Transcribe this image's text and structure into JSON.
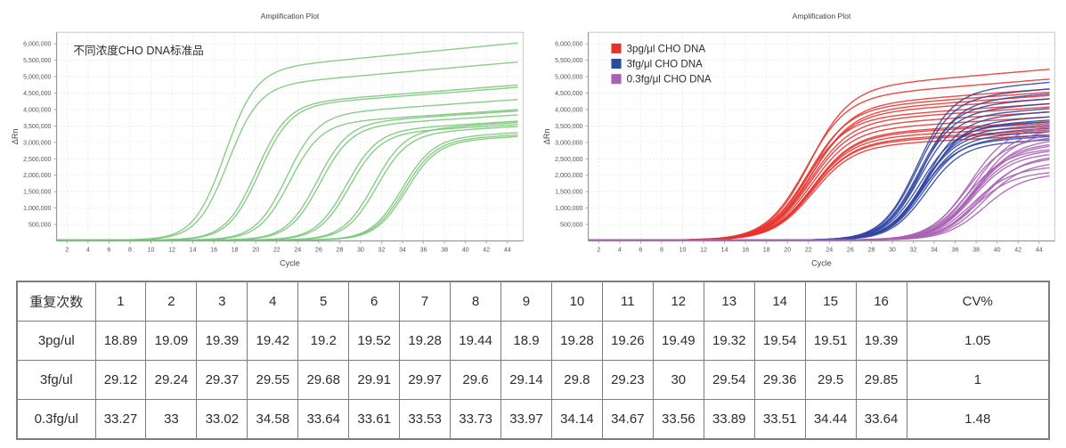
{
  "chart_data": [
    {
      "type": "line",
      "title": "Amplification Plot",
      "xlabel": "Cycle",
      "ylabel": "ΔRn",
      "annotation": "不同浓度CHO DNA标准品",
      "annotation_x": 2.6,
      "annotation_y": 5680000,
      "grid": true,
      "xlim": [
        1,
        45.5
      ],
      "ylim": [
        0,
        6350000
      ],
      "x_ticks": [
        2,
        4,
        6,
        8,
        10,
        12,
        14,
        16,
        18,
        20,
        22,
        24,
        26,
        28,
        30,
        32,
        34,
        36,
        38,
        40,
        42,
        44
      ],
      "y_ticks": [
        500000,
        1000000,
        1500000,
        2000000,
        2500000,
        3000000,
        3500000,
        4000000,
        4500000,
        5000000,
        5500000,
        6000000
      ],
      "color": "#79c679",
      "sigmoid_k": 0.68,
      "curves": [
        {
          "m": 17.0,
          "end": 6000000
        },
        {
          "m": 17.3,
          "end": 5420000
        },
        {
          "m": 20.0,
          "end": 4720000
        },
        {
          "m": 20.3,
          "end": 4650000
        },
        {
          "m": 22.9,
          "end": 4280000
        },
        {
          "m": 23.2,
          "end": 3970000
        },
        {
          "m": 25.8,
          "end": 3930000
        },
        {
          "m": 26.1,
          "end": 3810000
        },
        {
          "m": 28.6,
          "end": 3620000
        },
        {
          "m": 28.9,
          "end": 3520000
        },
        {
          "m": 31.2,
          "end": 3580000
        },
        {
          "m": 31.5,
          "end": 3460000
        },
        {
          "m": 33.9,
          "end": 3270000
        },
        {
          "m": 34.1,
          "end": 3200000
        },
        {
          "m": 34.3,
          "end": 3150000
        }
      ]
    },
    {
      "type": "line",
      "title": "Amplification Plot",
      "xlabel": "Cycle",
      "ylabel": "ΔRn",
      "grid": true,
      "xlim": [
        1,
        45.5
      ],
      "ylim": [
        0,
        6350000
      ],
      "x_ticks": [
        2,
        4,
        6,
        8,
        10,
        12,
        14,
        16,
        18,
        20,
        22,
        24,
        26,
        28,
        30,
        32,
        34,
        36,
        38,
        40,
        42,
        44
      ],
      "y_ticks": [
        500000,
        1000000,
        1500000,
        2000000,
        2500000,
        3000000,
        3500000,
        4000000,
        4500000,
        5000000,
        5500000,
        6000000
      ],
      "legend_x": 3.2,
      "legend_y": 5750000,
      "legend": [
        {
          "label": "3pg/μl CHO DNA",
          "color": "#e8312b"
        },
        {
          "label": "3fg/μl CHO DNA",
          "color": "#2a4d9b"
        },
        {
          "label": "0.3fg/μl CHO DNA",
          "color": "#a861b4"
        }
      ],
      "series": [
        {
          "name": "3pg/μl CHO DNA",
          "color": "#e8312b",
          "sigmoid_k": 0.52,
          "ct_offset": 2.8,
          "cts": [
            18.89,
            19.09,
            19.39,
            19.42,
            19.2,
            19.52,
            19.28,
            19.44,
            18.9,
            19.28,
            19.26,
            19.49,
            19.32,
            19.54,
            19.51,
            19.39
          ],
          "end_values": [
            4150000,
            4500000,
            3750000,
            3300000,
            5200000,
            3600000,
            4300000,
            3450000,
            4900000,
            3900000,
            4050000,
            3350000,
            4600000,
            3200000,
            3550000,
            4400000
          ]
        },
        {
          "name": "3fg/μl CHO DNA",
          "color": "#3146a3",
          "sigmoid_k": 0.6,
          "ct_offset": 3.2,
          "cts": [
            29.12,
            29.24,
            29.37,
            29.55,
            29.68,
            29.91,
            29.97,
            29.6,
            29.14,
            29.8,
            29.23,
            30,
            29.54,
            29.36,
            29.5,
            29.85
          ],
          "end_values": [
            4800000,
            4150000,
            3600000,
            4450000,
            3300000,
            3900000,
            3050000,
            3500000,
            4600000,
            3200000,
            4300000,
            3750000,
            3400000,
            4000000,
            3150000,
            3650000
          ]
        },
        {
          "name": "0.3fg/μl CHO DNA",
          "color": "#a861b4",
          "sigmoid_k": 0.55,
          "ct_offset": 4.0,
          "cts": [
            33.27,
            33,
            33.02,
            34.58,
            33.64,
            33.61,
            33.53,
            33.73,
            33.97,
            34.14,
            34.67,
            33.56,
            33.89,
            33.51,
            34.44,
            33.64
          ],
          "end_values": [
            3450000,
            3100000,
            2750000,
            2300000,
            3300000,
            2600000,
            2900000,
            2050000,
            3200000,
            2450000,
            1950000,
            2700000,
            3000000,
            2200000,
            2500000,
            2850000
          ]
        }
      ]
    }
  ],
  "table": {
    "header": [
      "重复次数",
      "1",
      "2",
      "3",
      "4",
      "5",
      "6",
      "7",
      "8",
      "9",
      "10",
      "11",
      "12",
      "13",
      "14",
      "15",
      "16",
      "CV%"
    ],
    "rows": [
      {
        "label": "3pg/ul",
        "values": [
          "18.89",
          "19.09",
          "19.39",
          "19.42",
          "19.2",
          "19.52",
          "19.28",
          "19.44",
          "18.9",
          "19.28",
          "19.26",
          "19.49",
          "19.32",
          "19.54",
          "19.51",
          "19.39"
        ],
        "cv": "1.05"
      },
      {
        "label": "3fg/ul",
        "values": [
          "29.12",
          "29.24",
          "29.37",
          "29.55",
          "29.68",
          "29.91",
          "29.97",
          "29.6",
          "29.14",
          "29.8",
          "29.23",
          "30",
          "29.54",
          "29.36",
          "29.5",
          "29.85"
        ],
        "cv": "1"
      },
      {
        "label": "0.3fg/ul",
        "values": [
          "33.27",
          "33",
          "33.02",
          "34.58",
          "33.64",
          "33.61",
          "33.53",
          "33.73",
          "33.97",
          "34.14",
          "34.67",
          "33.56",
          "33.89",
          "33.51",
          "34.44",
          "33.64"
        ],
        "cv": "1.48"
      }
    ]
  }
}
